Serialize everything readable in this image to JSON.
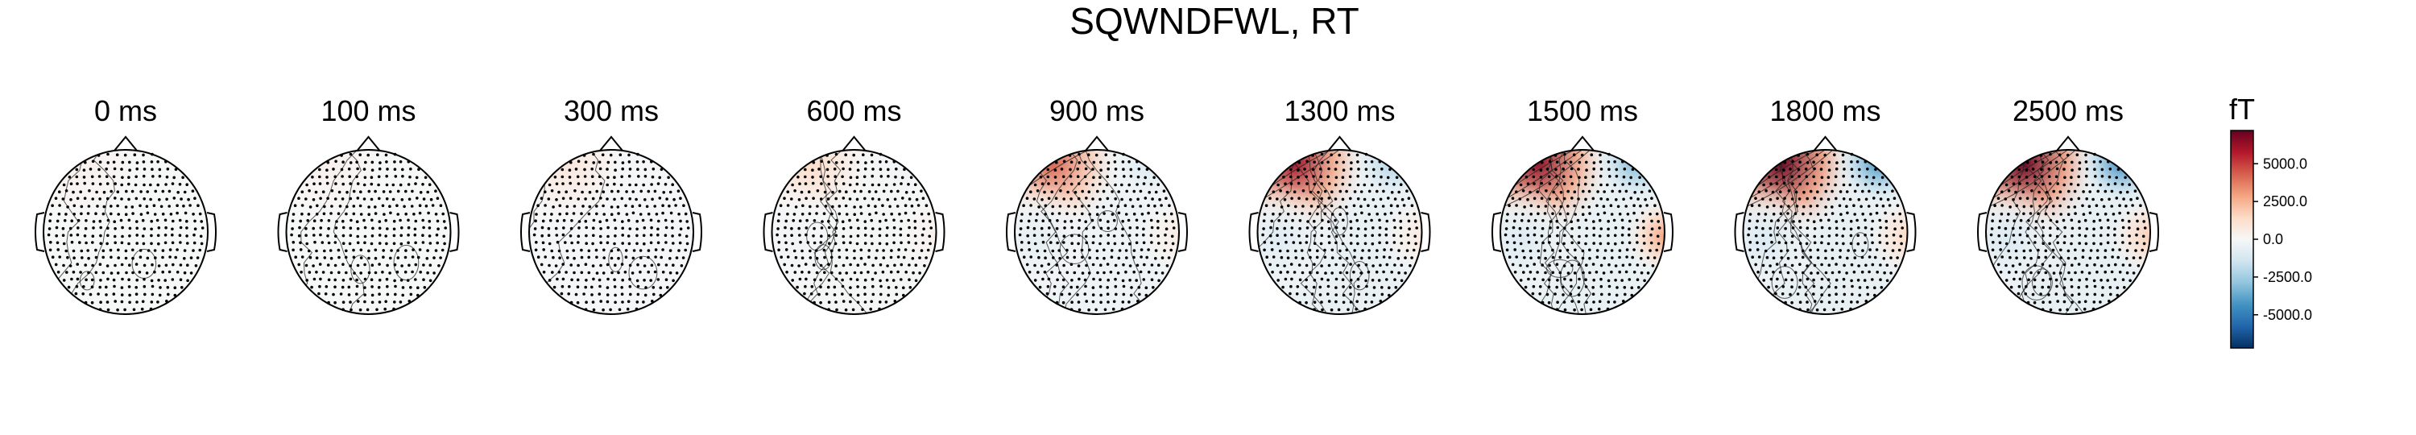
{
  "chart_data": {
    "type": "heatmap",
    "title": "SQWNDFWL, RT",
    "panels": [
      {
        "label": "0 ms",
        "amplitude": 0.05,
        "anterior_left": 0.05,
        "anterior_right": 0.0,
        "right_temporal": 0.0
      },
      {
        "label": "100 ms",
        "amplitude": 0.05,
        "anterior_left": 0.05,
        "anterior_right": 0.0,
        "right_temporal": 0.0
      },
      {
        "label": "300 ms",
        "amplitude": 0.12,
        "anterior_left": 0.12,
        "anterior_right": 0.0,
        "right_temporal": 0.0
      },
      {
        "label": "600 ms",
        "amplitude": 0.2,
        "anterior_left": 0.2,
        "anterior_right": -0.05,
        "right_temporal": 0.05
      },
      {
        "label": "900 ms",
        "amplitude": 0.6,
        "anterior_left": 0.6,
        "anterior_right": -0.15,
        "right_temporal": 0.08
      },
      {
        "label": "1300 ms",
        "amplitude": 0.85,
        "anterior_left": 0.85,
        "anterior_right": -0.3,
        "right_temporal": 0.1
      },
      {
        "label": "1500 ms",
        "amplitude": 0.9,
        "anterior_left": 0.9,
        "anterior_right": -0.45,
        "right_temporal": 0.4
      },
      {
        "label": "1800 ms",
        "amplitude": 1.0,
        "anterior_left": 1.0,
        "anterior_right": -0.6,
        "right_temporal": 0.2
      },
      {
        "label": "2500 ms",
        "amplitude": 1.0,
        "anterior_left": 1.0,
        "anterior_right": -0.65,
        "right_temporal": 0.25
      }
    ],
    "colorbar": {
      "unit": "fT",
      "ticks": [
        5000.0,
        2500.0,
        0.0,
        -2500.0,
        -5000.0
      ],
      "tick_labels": [
        "5000.0",
        "2500.0",
        "0.0",
        "-2500.0",
        "-5000.0"
      ],
      "range": [
        -7200,
        7200
      ],
      "colormap": "RdBu_r",
      "colors": [
        "#053061",
        "#2166ac",
        "#4393c3",
        "#92c5de",
        "#d1e5f0",
        "#f7f7f7",
        "#fddbc7",
        "#f4a582",
        "#d6604d",
        "#b2182b",
        "#67001f"
      ]
    }
  }
}
